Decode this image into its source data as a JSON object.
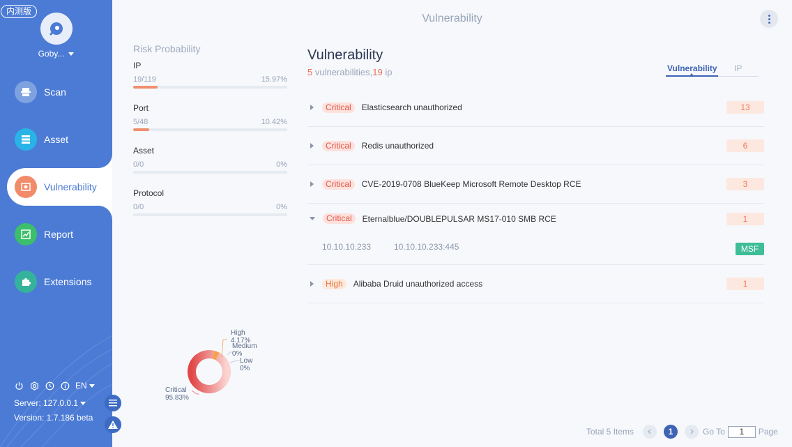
{
  "sidebar": {
    "beta_badge": "内测版",
    "user": "Goby...",
    "nav": [
      {
        "label": "Scan",
        "icon": "scan-icon",
        "color": "#7ea2e0"
      },
      {
        "label": "Asset",
        "icon": "asset-icon",
        "color": "#2ab3e6"
      },
      {
        "label": "Vulnerability",
        "icon": "vulnerability-icon",
        "color": "#f28b6a"
      },
      {
        "label": "Report",
        "icon": "report-icon",
        "color": "#3bbf6a"
      },
      {
        "label": "Extensions",
        "icon": "extensions-icon",
        "color": "#35b39a"
      }
    ],
    "language": "EN",
    "server": "Server: 127.0.0.1",
    "version": "Version: 1.7.186 beta"
  },
  "header": {
    "title": "Vulnerability"
  },
  "risk": {
    "title": "Risk Probability",
    "items": [
      {
        "label": "IP",
        "count": "19/119",
        "percent": "15.97%",
        "fill": 0.1597
      },
      {
        "label": "Port",
        "count": "5/48",
        "percent": "10.42%",
        "fill": 0.1042
      },
      {
        "label": "Asset",
        "count": "0/0",
        "percent": "0%",
        "fill": 0
      },
      {
        "label": "Protocol",
        "count": "0/0",
        "percent": "0%",
        "fill": 0
      }
    ]
  },
  "donut": {
    "critical_label": "Critical",
    "critical_pct": "95.83%",
    "critical_value": 95.83,
    "high_label": "High",
    "high_pct": "4.17%",
    "high_value": 4.17,
    "medium_label": "Medium",
    "medium_pct": "0%",
    "low_label": "Low",
    "low_pct": "0%"
  },
  "main": {
    "title": "Vulnerability",
    "vuln_count": "5",
    "vuln_text": " vulnerabilities,",
    "ip_count": "19",
    "ip_text": " ip",
    "tabs": [
      "Vulnerability",
      "IP"
    ],
    "rows": [
      {
        "severity": "Critical",
        "name": "Elasticsearch unauthorized",
        "count": "13"
      },
      {
        "severity": "Critical",
        "name": "Redis unauthorized",
        "count": "6"
      },
      {
        "severity": "Critical",
        "name": "CVE-2019-0708 BlueKeep Microsoft Remote Desktop RCE",
        "count": "3"
      },
      {
        "severity": "Critical",
        "name": "Eternalblue/DOUBLEPULSAR MS17-010 SMB RCE",
        "count": "1"
      },
      {
        "severity": "High",
        "name": "Alibaba Druid unauthorized access",
        "count": "1"
      }
    ],
    "expanded": {
      "ip": "10.10.10.233",
      "port": "10.10.10.233:445",
      "tag": "MSF"
    }
  },
  "pager": {
    "total": "Total 5 Items",
    "current": "1",
    "goto": "Go To",
    "input": "1",
    "page": "Page"
  }
}
